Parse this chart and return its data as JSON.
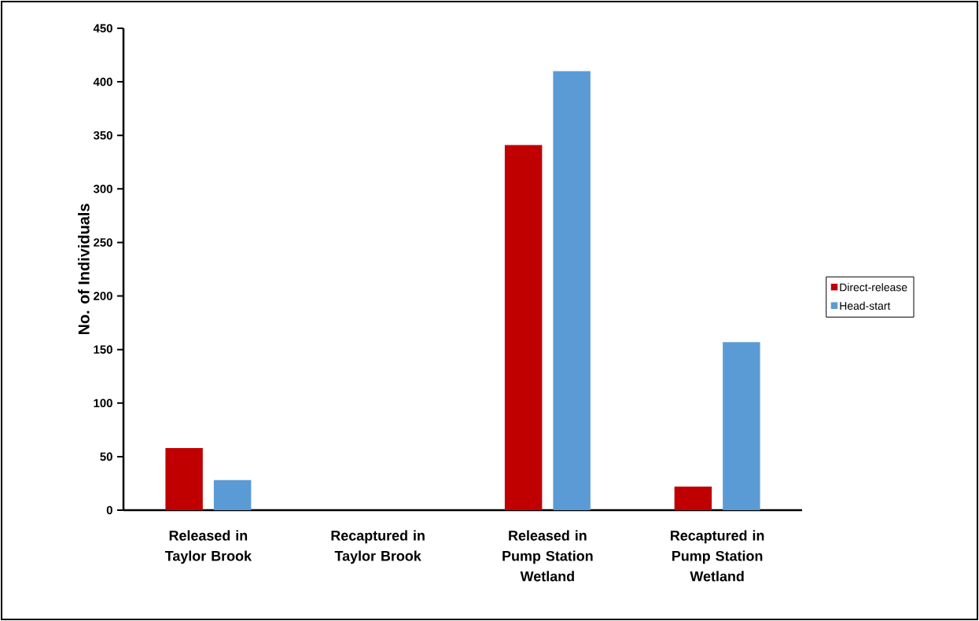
{
  "chart_data": {
    "type": "bar",
    "ylabel": "No. of Individuals",
    "categories": [
      "Released in Taylor Brook",
      "Recaptured in Taylor Brook",
      "Released in Pump Station Wetland",
      "Recaptured in Pump Station Wetland"
    ],
    "series": [
      {
        "name": "Direct-release",
        "color": "#c00000",
        "values": [
          58,
          0,
          341,
          22
        ]
      },
      {
        "name": "Head-start",
        "color": "#5b9bd5",
        "values": [
          28,
          0,
          410,
          157
        ]
      }
    ],
    "ylim": [
      0,
      450
    ],
    "yticks": [
      0,
      50,
      100,
      150,
      200,
      250,
      300,
      350,
      400,
      450
    ],
    "grid": false,
    "legend": "right"
  }
}
